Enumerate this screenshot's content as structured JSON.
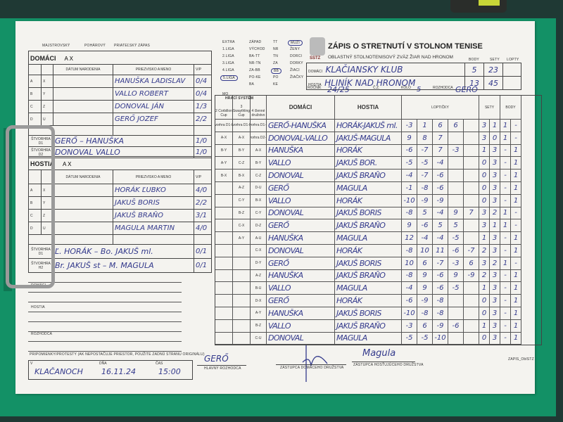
{
  "colors": {
    "background": "#1f3934",
    "clipboard": "#139166",
    "paper": "#f4f3ef",
    "ink": "#343a8c"
  },
  "header_top": {
    "majstrovsky": "MAJSTROVSKÝ",
    "poharovy": "POHÁROVÝ",
    "priatelsky": "PRIATEĽSKÝ ZÁPAS"
  },
  "leagues": {
    "col1": [
      "EXTRA",
      "1.LIGA",
      "2.LIGA",
      "3.LIGA",
      "4.LIGA",
      "5.LIGA"
    ],
    "col2": [
      "ZÁPAD",
      "VÝCHOD",
      "BA-TT",
      "NR-TN",
      "ZA-BB",
      "PO-KE",
      "BA"
    ],
    "col3": [
      "TT",
      "NR",
      "TN",
      "ZA",
      "BB",
      "PO",
      "KE"
    ],
    "col4": [
      "MUŽI",
      "ŽENY",
      "DORCI",
      "DORKY",
      "ŽIACI",
      "ŽIAČKY"
    ],
    "selected": [
      "5.LIGA",
      "BB",
      "MUŽI"
    ],
    "mo_label": "MO"
  },
  "title": {
    "main": "ZÁPIS O STRETNUTÍ V STOLNOM TENISE",
    "sub": "OBLASTNÝ STOLNOTENISOVÝ ZVÄZ ŽIAR NAD HRONOM",
    "logo_text": "SSTZ"
  },
  "teams": {
    "col_headers": {
      "body": "BODY",
      "sety": "SETY",
      "lopty": "LOPTY"
    },
    "domaci_label": "DOMÁCI",
    "domaci": "KLAČIANSKY KLUB",
    "domaci_body": "5",
    "domaci_sety": "23",
    "hostia_label": "HOSTIA",
    "hostia": "HLINÍK NAD HRONOM",
    "hostia_body": "13",
    "hostia_sety": "45",
    "rocnik_label": "ROČNÍK",
    "rocnik": "24/25",
    "cz_label": "Č.Z.",
    "kolo_label": "KOLO",
    "kolo": "5",
    "rozhodca_label": "ROZHODCA",
    "rozhodca": "GERŐ"
  },
  "domaci_roster": {
    "title": "DOMÁCI",
    "ax": "A   X",
    "headers": {
      "datum": "DÁTUM NARODENIA",
      "meno": "PRIEZVISKO A MENO",
      "vp": "V/P"
    },
    "players": [
      {
        "l1": "A",
        "l2": "X",
        "name": "HANUŠKA LADISLAV",
        "vp": "0/4"
      },
      {
        "l1": "B",
        "l2": "Y",
        "name": "VALLO ROBERT",
        "vp": "0/4"
      },
      {
        "l1": "C",
        "l2": "Z",
        "name": "DONOVAL JÁN",
        "vp": "1/3"
      },
      {
        "l1": "D",
        "l2": "U",
        "name": "GERŐ JOZEF",
        "vp": "2/2"
      }
    ],
    "doubles": [
      {
        "label": "ŠTVORHRA D1",
        "names": "GERŐ – HANUŠKA",
        "vp": "1/0"
      },
      {
        "label": "ŠTVORHRA D2",
        "names": "DONOVAL VALLO",
        "vp": "1/0"
      }
    ]
  },
  "hostia_roster": {
    "title": "HOSTIA",
    "ax": "A   X",
    "headers": {
      "datum": "DÁTUM NARODENIA",
      "meno": "PRIEZVISKO A MENO",
      "vp": "V/P"
    },
    "players": [
      {
        "l1": "A",
        "l2": "X",
        "name": "HORÁK ĽUBKO",
        "vp": "4/0"
      },
      {
        "l1": "B",
        "l2": "Y",
        "name": "JAKUŠ BORIS",
        "vp": "2/2"
      },
      {
        "l1": "C",
        "l2": "Z",
        "name": "JAKUŠ BRAŇO",
        "vp": "3/1"
      },
      {
        "l1": "D",
        "l2": "U",
        "name": "MAGULA MARTIN",
        "vp": "4/0"
      }
    ],
    "doubles": [
      {
        "label": "ŠTVORHRA D1",
        "names": "Ľ. HORÁK – Bo. JAKUŠ ml.",
        "vp": "0/1"
      },
      {
        "label": "ŠTVORHRA H2",
        "names": "Br. JAKUŠ st – M. MAGULA",
        "vp": "0/1"
      }
    ]
  },
  "notes": {
    "domaci": "DOMÁCI",
    "hostia": "HOSTIA",
    "rozhodca": "ROZHODCA",
    "remarks": "PRIPOMIENKY/PROTESTY (AK NEPOSTAČUJE PRIESTOR, POUŽITE ZADNÚ STRANU ORIGINÁLU)"
  },
  "footer": {
    "v_label": "V",
    "place": "KLAČANOCH",
    "date_label": "DŇA",
    "date": "16.11.24",
    "time_label": "ČAS",
    "time": "15:00",
    "referee_sig": "GERŐ",
    "referee_label": "HLAVNÝ ROZHODCA",
    "home_rep_label": "ZÁSTUPCA DOMÁCEHO DRUŽSTVA",
    "away_rep_sig": "Magula",
    "away_rep_label": "ZÁSTUPCA HOSŤUJÚCEHO DRUŽSTVA",
    "form_code": "ZAPIS_OblSTZ"
  },
  "match_table": {
    "headers": {
      "system": "HRACÍ SYSTÉM",
      "sys1": "2 Corbillon Cup",
      "sys2": "3 Swaythling Cup",
      "sys3": "4 členné družstvo",
      "domaci": "DOMÁCI",
      "hostia": "HOSTIA",
      "loptičky": "LOPTIČKY",
      "sety": "SETY",
      "body": "BODY"
    },
    "rows": [
      {
        "s1": "Štvorhra D1-H1",
        "s2": "Štvorhra D1-H1",
        "s3": "Štvorhra D1-H1",
        "home": "GERŐ-HANUŠKA",
        "away": "HORÁK-JAKUŠ ml.",
        "balls": [
          "-3",
          "1",
          "6",
          "6",
          ""
        ],
        "sets": [
          "3",
          "1"
        ],
        "points": [
          "1",
          "-"
        ]
      },
      {
        "s1": "A-X",
        "s2": "A-X",
        "s3": "Štvorhra D2-H2",
        "home": "DONOVAL-VALLO",
        "away": "JAKUŠ-MAGULA",
        "balls": [
          "9",
          "8",
          "7",
          "",
          ""
        ],
        "sets": [
          "3",
          "0"
        ],
        "points": [
          "1",
          "-"
        ]
      },
      {
        "s1": "B-Y",
        "s2": "B-Y",
        "s3": "A-X",
        "home": "HANUŠKA",
        "away": "HORÁK",
        "balls": [
          "-6",
          "-7",
          "7",
          "-3",
          ""
        ],
        "sets": [
          "1",
          "3"
        ],
        "points": [
          "-",
          "1"
        ]
      },
      {
        "s1": "A-Y",
        "s2": "C-Z",
        "s3": "B-Y",
        "home": "VALLO",
        "away": "JAKUŠ BOR.",
        "balls": [
          "-5",
          "-5",
          "-4",
          "",
          ""
        ],
        "sets": [
          "0",
          "3"
        ],
        "points": [
          "-",
          "1"
        ]
      },
      {
        "s1": "B-X",
        "s2": "B-X",
        "s3": "C-Z",
        "home": "DONOVAL",
        "away": "JAKUŠ BRAŇO",
        "balls": [
          "-4",
          "-7",
          "-6",
          "",
          ""
        ],
        "sets": [
          "0",
          "3"
        ],
        "points": [
          "-",
          "1"
        ]
      },
      {
        "s1": "",
        "s2": "A-Z",
        "s3": "D-U",
        "home": "GERŐ",
        "away": "MAGULA",
        "balls": [
          "-1",
          "-8",
          "-6",
          "",
          ""
        ],
        "sets": [
          "0",
          "3"
        ],
        "points": [
          "-",
          "1"
        ]
      },
      {
        "s1": "",
        "s2": "C-Y",
        "s3": "B-X",
        "home": "VALLO",
        "away": "HORÁK",
        "balls": [
          "-10",
          "-9",
          "-9",
          "",
          ""
        ],
        "sets": [
          "0",
          "3"
        ],
        "points": [
          "-",
          "1"
        ]
      },
      {
        "s1": "",
        "s2": "B-Z",
        "s3": "C-Y",
        "home": "DONOVAL",
        "away": "JAKUŠ BORIS",
        "balls": [
          "-8",
          "5",
          "-4",
          "9",
          "7"
        ],
        "sets": [
          "3",
          "2"
        ],
        "points": [
          "1",
          "-"
        ]
      },
      {
        "s1": "",
        "s2": "C-X",
        "s3": "D-Z",
        "home": "GERŐ",
        "away": "JAKUŠ BRAŇO",
        "balls": [
          "9",
          "-6",
          "5",
          "5",
          ""
        ],
        "sets": [
          "3",
          "1"
        ],
        "points": [
          "1",
          "-"
        ]
      },
      {
        "s1": "",
        "s2": "A-Y",
        "s3": "A-U",
        "home": "HANUŠKA",
        "away": "MAGULA",
        "balls": [
          "12",
          "-4",
          "-4",
          "-5",
          ""
        ],
        "sets": [
          "1",
          "3"
        ],
        "points": [
          "-",
          "1"
        ]
      },
      {
        "s1": "",
        "s2": "",
        "s3": "C-X",
        "home": "DONOVAL",
        "away": "HORÁK",
        "balls": [
          "-8",
          "10",
          "11",
          "-6",
          "-7"
        ],
        "sets": [
          "2",
          "3"
        ],
        "points": [
          "-",
          "1"
        ]
      },
      {
        "s1": "",
        "s2": "",
        "s3": "D-Y",
        "home": "GERŐ",
        "away": "JAKUŠ BORIS",
        "balls": [
          "10",
          "6",
          "-7",
          "-3",
          "6"
        ],
        "sets": [
          "3",
          "2"
        ],
        "points": [
          "1",
          "-"
        ]
      },
      {
        "s1": "",
        "s2": "",
        "s3": "A-Z",
        "home": "HANUŠKA",
        "away": "JAKUŠ BRAŇO",
        "balls": [
          "-8",
          "9",
          "-6",
          "9",
          "-9"
        ],
        "sets": [
          "2",
          "3"
        ],
        "points": [
          "-",
          "1"
        ]
      },
      {
        "s1": "",
        "s2": "",
        "s3": "B-U",
        "home": "VALLO",
        "away": "MAGULA",
        "balls": [
          "-4",
          "9",
          "-6",
          "-5",
          ""
        ],
        "sets": [
          "1",
          "3"
        ],
        "points": [
          "-",
          "1"
        ]
      },
      {
        "s1": "",
        "s2": "",
        "s3": "D-X",
        "home": "GERŐ",
        "away": "HORÁK",
        "balls": [
          "-6",
          "-9",
          "-8",
          "",
          ""
        ],
        "sets": [
          "0",
          "3"
        ],
        "points": [
          "-",
          "1"
        ]
      },
      {
        "s1": "",
        "s2": "",
        "s3": "A-Y",
        "home": "HANUŠKA",
        "away": "JAKUŠ BORIS",
        "balls": [
          "-10",
          "-8",
          "-8",
          "",
          ""
        ],
        "sets": [
          "0",
          "3"
        ],
        "points": [
          "-",
          "1"
        ]
      },
      {
        "s1": "",
        "s2": "",
        "s3": "B-Z",
        "home": "VALLO",
        "away": "JAKUŠ BRAŇO",
        "balls": [
          "-3",
          "6",
          "-9",
          "-6",
          ""
        ],
        "sets": [
          "1",
          "3"
        ],
        "points": [
          "-",
          "1"
        ]
      },
      {
        "s1": "",
        "s2": "",
        "s3": "C-U",
        "home": "DONOVAL",
        "away": "MAGULA",
        "balls": [
          "-5",
          "-5",
          "-10",
          "",
          ""
        ],
        "sets": [
          "0",
          "3"
        ],
        "points": [
          "-",
          "1"
        ]
      }
    ]
  }
}
